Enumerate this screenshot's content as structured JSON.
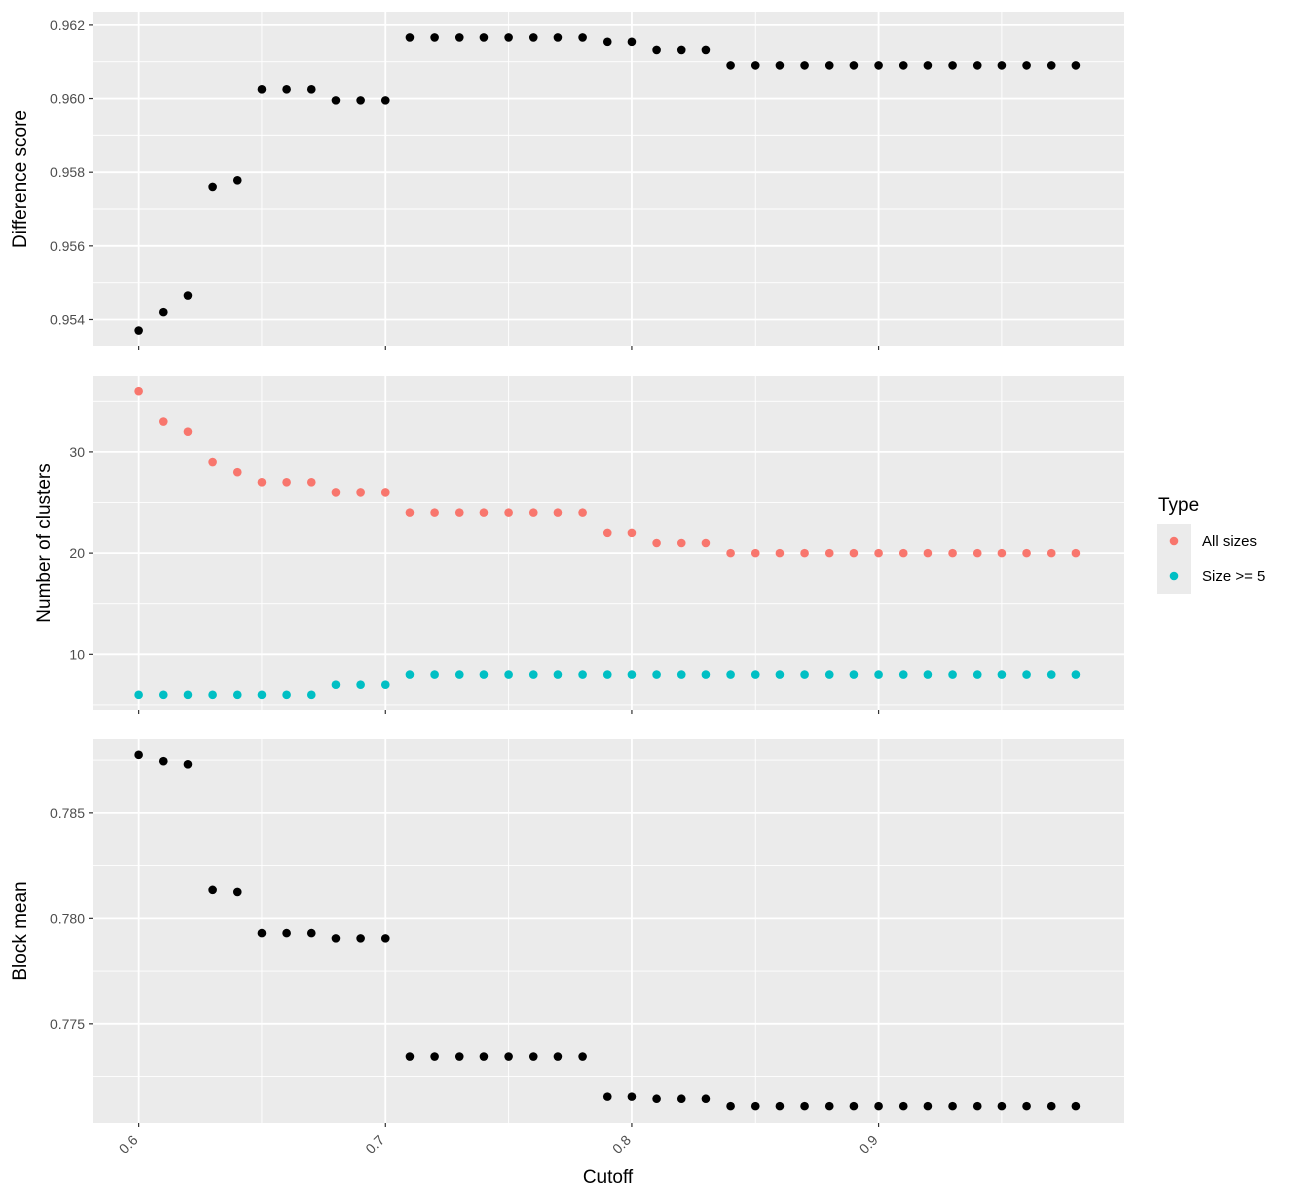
{
  "chart_data": {
    "type": "scatter",
    "xlabel": "Cutoff",
    "x_ticks": [
      0.6,
      0.7,
      0.8,
      0.9
    ],
    "x_tick_labels": [
      "0.6",
      "0.7",
      "0.8",
      "0.9"
    ],
    "xlim": [
      0.5815,
      0.9995
    ],
    "x": [
      0.6,
      0.61,
      0.62,
      0.63,
      0.64,
      0.65,
      0.66,
      0.67,
      0.68,
      0.69,
      0.7,
      0.71,
      0.72,
      0.73,
      0.74,
      0.75,
      0.76,
      0.77,
      0.78,
      0.79,
      0.8,
      0.81,
      0.82,
      0.83,
      0.84,
      0.85,
      0.86,
      0.87,
      0.88,
      0.89,
      0.9,
      0.91,
      0.92,
      0.93,
      0.94,
      0.95,
      0.96,
      0.97,
      0.98
    ],
    "grid": true,
    "legend_position": "right",
    "legend": {
      "title": "Type",
      "entries": [
        {
          "label": "All sizes",
          "color": "#F8766D"
        },
        {
          "label": "Size >= 5",
          "color": "#00BFC4"
        }
      ]
    },
    "panels": [
      {
        "ylabel": "Difference score",
        "ylim": [
          0.95328,
          0.96235
        ],
        "y_ticks": [
          0.954,
          0.956,
          0.958,
          0.96,
          0.962
        ],
        "y_tick_labels": [
          "0.954",
          "0.956",
          "0.958",
          "0.960",
          "0.962"
        ],
        "series": [
          {
            "color": "#000000",
            "values": [
              0.9537,
              0.9542,
              0.95465,
              0.9576,
              0.95778,
              0.96025,
              0.96025,
              0.96025,
              0.95995,
              0.95995,
              0.95995,
              0.96166,
              0.96166,
              0.96166,
              0.96166,
              0.96166,
              0.96166,
              0.96166,
              0.96166,
              0.96154,
              0.96154,
              0.96132,
              0.96132,
              0.96132,
              0.9609,
              0.9609,
              0.9609,
              0.9609,
              0.9609,
              0.9609,
              0.9609,
              0.9609,
              0.9609,
              0.9609,
              0.9609,
              0.9609,
              0.9609,
              0.9609,
              0.9609
            ]
          }
        ]
      },
      {
        "ylabel": "Number of clusters",
        "ylim": [
          4.5,
          37.5
        ],
        "y_ticks": [
          10,
          20,
          30
        ],
        "y_tick_labels": [
          "10",
          "20",
          "30"
        ],
        "series": [
          {
            "name": "All sizes",
            "color": "#F8766D",
            "values": [
              36,
              33,
              32,
              29,
              28,
              27,
              27,
              27,
              26,
              26,
              26,
              24,
              24,
              24,
              24,
              24,
              24,
              24,
              24,
              22,
              22,
              21,
              21,
              21,
              20,
              20,
              20,
              20,
              20,
              20,
              20,
              20,
              20,
              20,
              20,
              20,
              20,
              20,
              20
            ]
          },
          {
            "name": "Size >= 5",
            "color": "#00BFC4",
            "values": [
              6,
              6,
              6,
              6,
              6,
              6,
              6,
              6,
              7,
              7,
              7,
              8,
              8,
              8,
              8,
              8,
              8,
              8,
              8,
              8,
              8,
              8,
              8,
              8,
              8,
              8,
              8,
              8,
              8,
              8,
              8,
              8,
              8,
              8,
              8,
              8,
              8,
              8,
              8
            ]
          }
        ]
      },
      {
        "ylabel": "Block mean",
        "ylim": [
          0.7703,
          0.7885
        ],
        "y_ticks": [
          0.775,
          0.78,
          0.785
        ],
        "y_tick_labels": [
          "0.775",
          "0.780",
          "0.785"
        ],
        "series": [
          {
            "color": "#000000",
            "values": [
              0.78775,
              0.78745,
              0.7873,
              0.78135,
              0.78125,
              0.7793,
              0.7793,
              0.7793,
              0.77905,
              0.77905,
              0.77905,
              0.77345,
              0.77345,
              0.77345,
              0.77345,
              0.77345,
              0.77345,
              0.77345,
              0.77345,
              0.77155,
              0.77155,
              0.77145,
              0.77145,
              0.77145,
              0.7711,
              0.7711,
              0.7711,
              0.7711,
              0.7711,
              0.7711,
              0.7711,
              0.7711,
              0.7711,
              0.7711,
              0.7711,
              0.7711,
              0.7711,
              0.7711,
              0.7711
            ]
          }
        ]
      }
    ]
  }
}
